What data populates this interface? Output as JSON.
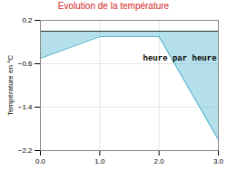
{
  "chart_data": {
    "type": "area",
    "title": "Evolution de la température",
    "ylabel": "Température en °C",
    "x": [
      0,
      1,
      2,
      3
    ],
    "values": [
      -0.5,
      -0.1,
      -0.1,
      -2.0
    ],
    "color": "#5ab8d0",
    "xlim": [
      0,
      3
    ],
    "ylim": [
      -2.2,
      0.2
    ],
    "xticks": [
      0,
      1,
      2,
      3
    ],
    "yticks": [
      0.2,
      -0.6,
      -1.4,
      -2.2
    ],
    "grid": true,
    "annotations": [
      {
        "text": "heure par heure",
        "x": 2.35,
        "y": -0.5
      }
    ]
  }
}
